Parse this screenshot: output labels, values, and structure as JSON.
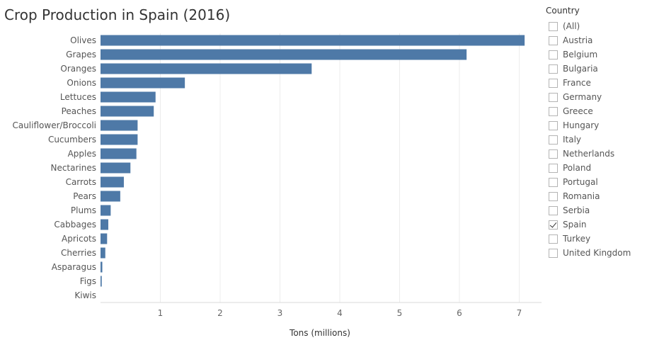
{
  "chart_data": {
    "type": "bar",
    "orientation": "horizontal",
    "title": "Crop Production in Spain (2016)",
    "xlabel": "Tons (millions)",
    "ylabel": "",
    "xlim": [
      0,
      7.4
    ],
    "xticks": [
      1,
      2,
      3,
      4,
      5,
      6,
      7
    ],
    "grid": true,
    "color": "#4e79a7",
    "categories": [
      "Olives",
      "Grapes",
      "Oranges",
      "Onions",
      "Lettuces",
      "Peaches",
      "Cauliflower/Broccoli",
      "Cucumbers",
      "Apples",
      "Nectarines",
      "Carrots",
      "Pears",
      "Plums",
      "Cabbages",
      "Apricots",
      "Cherries",
      "Asparagus",
      "Figs",
      "Kiwis"
    ],
    "values": [
      7.09,
      6.12,
      3.53,
      1.41,
      0.92,
      0.89,
      0.62,
      0.62,
      0.6,
      0.5,
      0.39,
      0.33,
      0.17,
      0.13,
      0.11,
      0.08,
      0.03,
      0.02,
      0.0
    ]
  },
  "filter": {
    "title": "Country",
    "options": [
      {
        "label": "(All)",
        "checked": false
      },
      {
        "label": "Austria",
        "checked": false
      },
      {
        "label": "Belgium",
        "checked": false
      },
      {
        "label": "Bulgaria",
        "checked": false
      },
      {
        "label": "France",
        "checked": false
      },
      {
        "label": "Germany",
        "checked": false
      },
      {
        "label": "Greece",
        "checked": false
      },
      {
        "label": "Hungary",
        "checked": false
      },
      {
        "label": "Italy",
        "checked": false
      },
      {
        "label": "Netherlands",
        "checked": false
      },
      {
        "label": "Poland",
        "checked": false
      },
      {
        "label": "Portugal",
        "checked": false
      },
      {
        "label": "Romania",
        "checked": false
      },
      {
        "label": "Serbia",
        "checked": false
      },
      {
        "label": "Spain",
        "checked": true
      },
      {
        "label": "Turkey",
        "checked": false
      },
      {
        "label": "United Kingdom",
        "checked": false
      }
    ]
  }
}
